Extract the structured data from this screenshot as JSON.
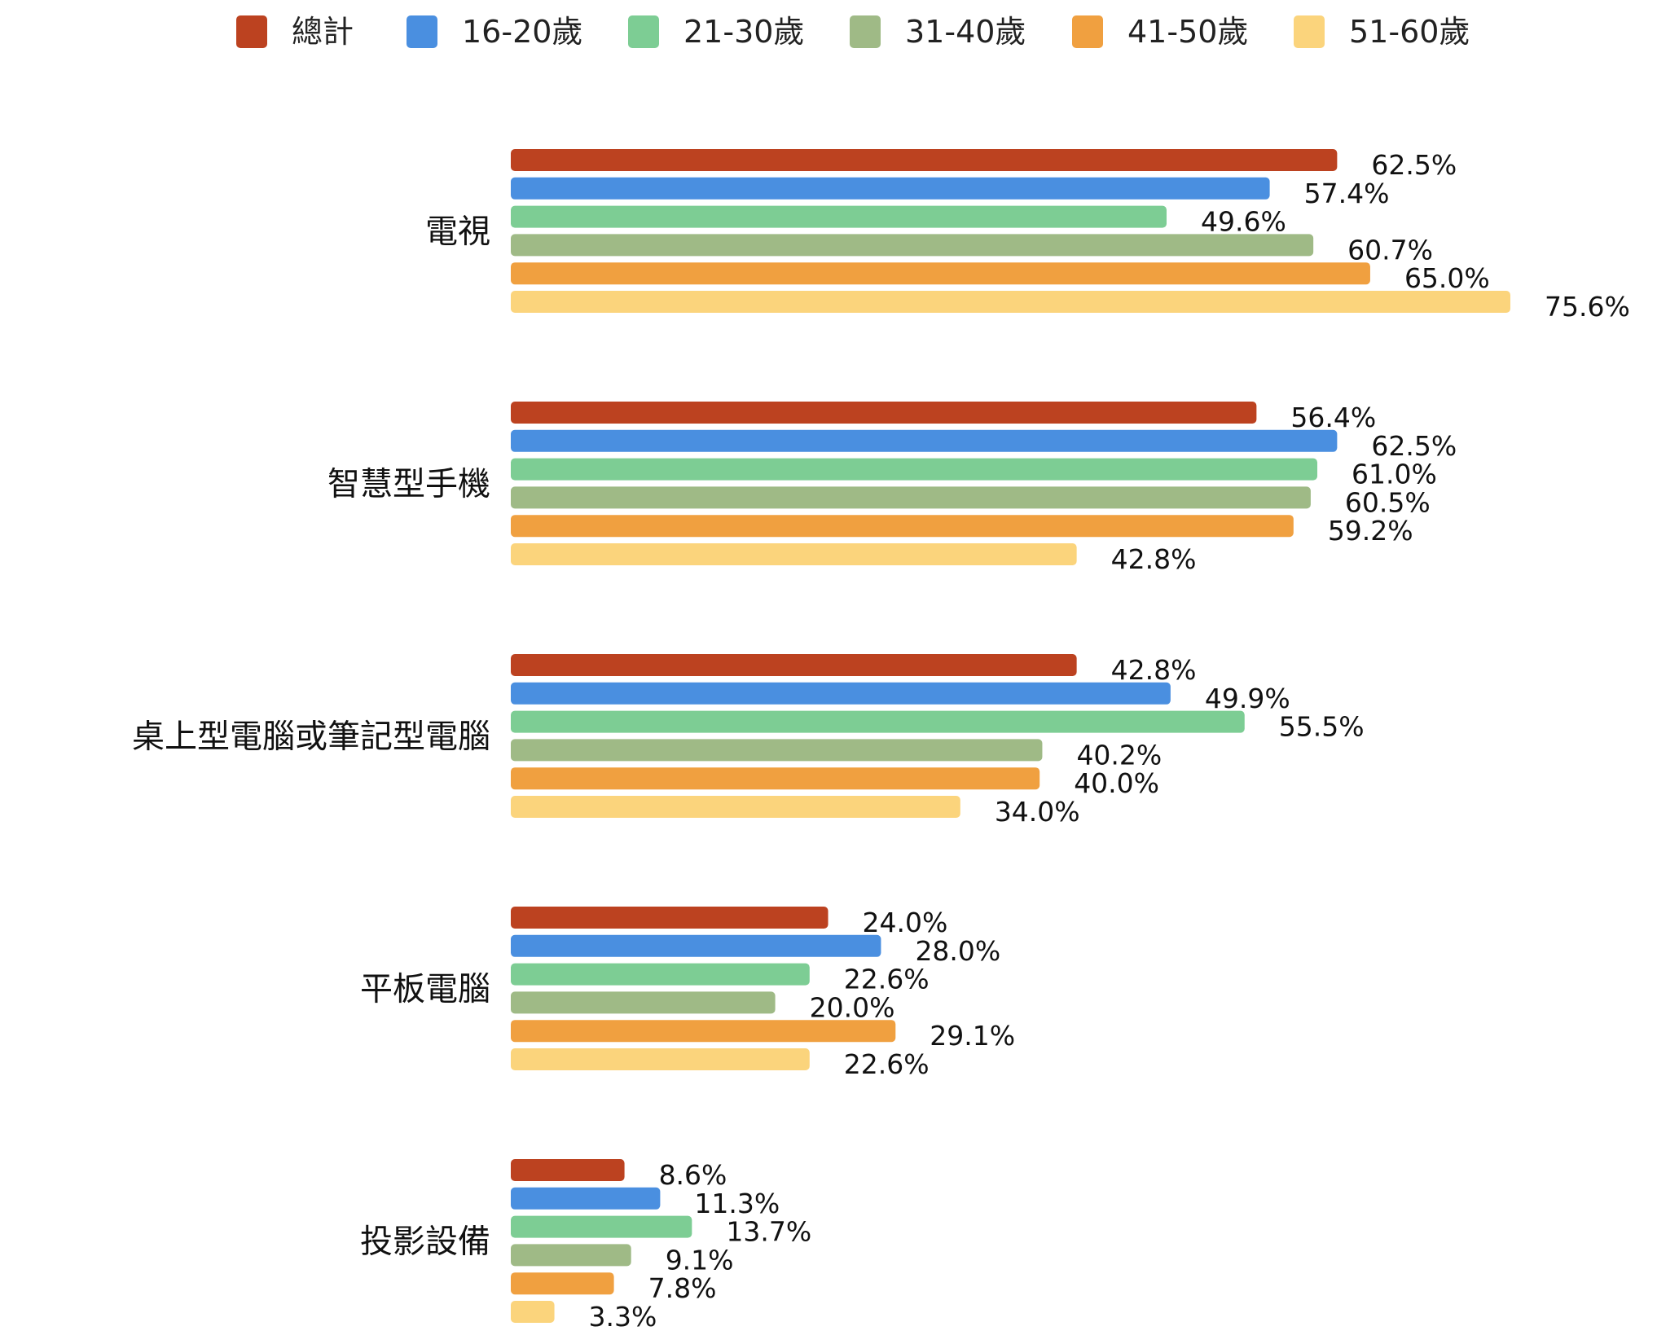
{
  "chart_data": {
    "type": "bar",
    "orientation": "horizontal",
    "title": "",
    "xlabel": "",
    "ylabel": "",
    "xlim": [
      0,
      80
    ],
    "grid": false,
    "legend_position": "top-center",
    "value_suffix": "%",
    "categories": [
      "電視",
      "智慧型手機",
      "桌上型電腦或筆記型電腦",
      "平板電腦",
      "投影設備"
    ],
    "series": [
      {
        "name": "總計",
        "color": "#BC4220",
        "values": [
          62.5,
          56.4,
          42.8,
          24.0,
          8.6
        ]
      },
      {
        "name": "16-20歲",
        "color": "#4A8FE0",
        "values": [
          57.4,
          62.5,
          49.9,
          28.0,
          11.3
        ]
      },
      {
        "name": "21-30歲",
        "color": "#7DCD94",
        "values": [
          49.6,
          61.0,
          55.5,
          22.6,
          13.7
        ]
      },
      {
        "name": "31-40歲",
        "color": "#9FBA86",
        "values": [
          60.7,
          60.5,
          40.2,
          20.0,
          9.1
        ]
      },
      {
        "name": "41-50歲",
        "color": "#F0A040",
        "values": [
          65.0,
          59.2,
          40.0,
          29.1,
          7.8
        ]
      },
      {
        "name": "51-60歲",
        "color": "#FBD47C",
        "values": [
          75.6,
          42.8,
          34.0,
          22.6,
          3.3
        ]
      }
    ]
  }
}
